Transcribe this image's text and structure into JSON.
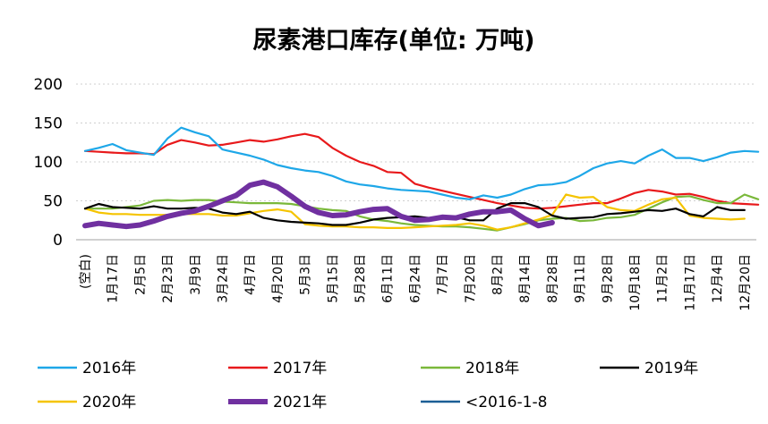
{
  "chart_data": {
    "type": "line",
    "title": "尿素港口库存(单位: 万吨)",
    "ylim": [
      0,
      200
    ],
    "y_ticks": [
      "0",
      "50",
      "100",
      "150",
      "200"
    ],
    "grid": "horizontal-dotted",
    "legend_placement": "bottom",
    "x_tick_labels": [
      "(空白)",
      "1月17日",
      "2月5日",
      "2月23日",
      "3月9日",
      "3月24日",
      "4月7日",
      "4月20日",
      "5月3日",
      "5月15日",
      "5月28日",
      "6月11日",
      "6月24日",
      "7月7日",
      "7月20日",
      "8月2日",
      "8月14日",
      "8月28日",
      "9月11日",
      "9月28日",
      "10月18日",
      "11月2日",
      "11月17日",
      "12月4日",
      "12月20日"
    ],
    "series": [
      {
        "name": "2016年",
        "color": "#1ea7e8",
        "values": [
          114,
          118,
          123,
          115,
          112,
          109,
          130,
          144,
          138,
          133,
          116,
          112,
          108,
          103,
          96,
          92,
          89,
          87,
          82,
          75,
          71,
          69,
          66,
          64,
          63,
          62,
          58,
          54,
          52,
          57,
          54,
          58,
          65,
          70,
          71,
          74,
          82,
          92,
          98,
          101,
          98,
          108,
          116,
          105,
          105,
          101,
          106,
          112,
          114,
          113
        ]
      },
      {
        "name": "2017年",
        "color": "#e8191b",
        "values": [
          114,
          113,
          112,
          111,
          111,
          110,
          122,
          128,
          125,
          121,
          122,
          125,
          128,
          126,
          129,
          133,
          136,
          132,
          118,
          108,
          100,
          95,
          87,
          86,
          72,
          67,
          63,
          59,
          55,
          51,
          47,
          44,
          41,
          40,
          41,
          43,
          45,
          47,
          47,
          53,
          60,
          64,
          62,
          58,
          59,
          55,
          50,
          47,
          46,
          45
        ]
      },
      {
        "name": "2018年",
        "color": "#7ab83a",
        "values": [
          40,
          40,
          40,
          42,
          44,
          50,
          51,
          50,
          51,
          51,
          49,
          48,
          47,
          47,
          47,
          46,
          43,
          40,
          38,
          37,
          30,
          26,
          24,
          21,
          19,
          18,
          17,
          17,
          16,
          14,
          12,
          16,
          20,
          25,
          27,
          28,
          24,
          25,
          28,
          29,
          32,
          40,
          48,
          55,
          56,
          51,
          47,
          47,
          58,
          52
        ]
      },
      {
        "name": "2019年",
        "color": "#000000",
        "values": [
          40,
          46,
          42,
          41,
          40,
          43,
          40,
          40,
          41,
          40,
          35,
          33,
          36,
          28,
          25,
          23,
          22,
          21,
          19,
          19,
          22,
          26,
          28,
          29,
          30,
          28,
          27,
          29,
          25,
          25,
          40,
          47,
          47,
          42,
          31,
          27,
          28,
          29,
          33,
          34,
          36,
          38,
          37,
          40,
          33,
          30,
          42,
          38,
          38,
          null
        ]
      },
      {
        "name": "2020年",
        "color": "#f5c400",
        "values": [
          40,
          35,
          33,
          33,
          32,
          32,
          32,
          33,
          33,
          33,
          31,
          31,
          34,
          37,
          39,
          36,
          20,
          18,
          17,
          17,
          16,
          16,
          15,
          15,
          16,
          17,
          18,
          19,
          21,
          18,
          13,
          16,
          21,
          26,
          32,
          58,
          54,
          55,
          42,
          38,
          37,
          45,
          52,
          54,
          31,
          28,
          27,
          26,
          27,
          null
        ]
      },
      {
        "name": "2021年",
        "color": "#7030a0",
        "values": [
          18,
          21,
          19,
          17,
          19,
          24,
          30,
          34,
          37,
          43,
          50,
          57,
          70,
          74,
          68,
          56,
          43,
          35,
          31,
          32,
          36,
          39,
          40,
          30,
          25,
          26,
          29,
          28,
          33,
          36,
          36,
          38,
          27,
          18,
          22,
          null,
          null,
          null,
          null,
          null,
          null,
          null,
          null,
          null,
          null,
          null,
          null,
          null,
          null,
          null
        ]
      },
      {
        "name": "<2016-1-8",
        "color": "#1b5e95",
        "values": []
      }
    ]
  }
}
